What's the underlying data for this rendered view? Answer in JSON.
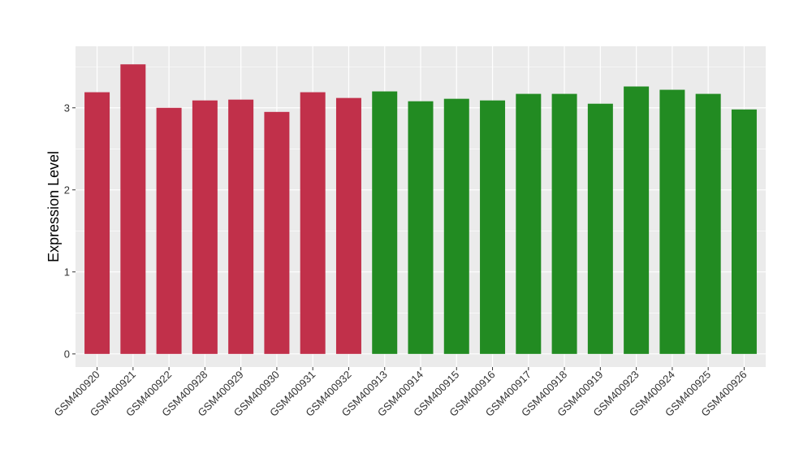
{
  "chart_data": {
    "type": "bar",
    "title": "",
    "xlabel": "",
    "ylabel": "Expression Level",
    "ylim": [
      -0.16,
      3.75
    ],
    "yticks": [
      0,
      1,
      2,
      3
    ],
    "ytick_labels": [
      "0",
      "1",
      "2",
      "3"
    ],
    "grid": true,
    "legend": "none",
    "categories": [
      "GSM400920",
      "GSM400921",
      "GSM400922",
      "GSM400928",
      "GSM400929",
      "GSM400930",
      "GSM400931",
      "GSM400932",
      "GSM400913",
      "GSM400914",
      "GSM400915",
      "GSM400916",
      "GSM400917",
      "GSM400918",
      "GSM400919",
      "GSM400923",
      "GSM400924",
      "GSM400925",
      "GSM400926"
    ],
    "values": [
      3.19,
      3.53,
      3.0,
      3.09,
      3.1,
      2.95,
      3.19,
      3.12,
      3.2,
      3.08,
      3.11,
      3.09,
      3.17,
      3.17,
      3.05,
      3.26,
      3.22,
      3.17,
      2.98
    ],
    "group_colors": [
      "#C1304A",
      "#C1304A",
      "#C1304A",
      "#C1304A",
      "#C1304A",
      "#C1304A",
      "#C1304A",
      "#C1304A",
      "#228B22",
      "#228B22",
      "#228B22",
      "#228B22",
      "#228B22",
      "#228B22",
      "#228B22",
      "#228B22",
      "#228B22",
      "#228B22",
      "#228B22"
    ],
    "panel_background": "#EBEBEB",
    "grid_color": "#FFFFFF"
  }
}
